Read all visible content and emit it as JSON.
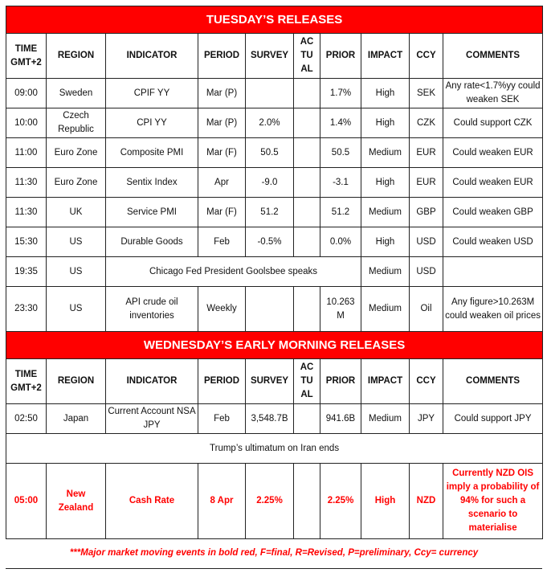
{
  "columns": [
    "TIME GMT+2",
    "REGION",
    "INDICATOR",
    "PERIOD",
    "SURVEY",
    "AC TU AL",
    "PRIOR",
    "IMPACT",
    "CCY",
    "COMMENTS"
  ],
  "colors": {
    "accent": "#ff0000"
  },
  "sections": [
    {
      "title": "TUESDAY’S RELEASES",
      "rows": [
        {
          "cells": [
            "09:00",
            "Sweden",
            "CPIF YY",
            "Mar (P)",
            "",
            "",
            "1.7%",
            "High",
            "SEK",
            "Any rate<1.7%yy could weaken SEK"
          ]
        },
        {
          "cells": [
            "10:00",
            "Czech Republic",
            "CPI YY",
            "Mar (P)",
            "2.0%",
            "",
            "1.4%",
            "High",
            "CZK",
            "Could support CZK"
          ]
        },
        {
          "cells": [
            "11:00",
            "Euro Zone",
            "Composite PMI",
            "Mar (F)",
            "50.5",
            "",
            "50.5",
            "Medium",
            "EUR",
            "Could weaken EUR"
          ]
        },
        {
          "cells": [
            "11:30",
            "Euro Zone",
            "Sentix Index",
            "Apr",
            "-9.0",
            "",
            "-3.1",
            "High",
            "EUR",
            "Could weaken EUR"
          ]
        },
        {
          "cells": [
            "11:30",
            "UK",
            "Service PMI",
            "Mar (F)",
            "51.2",
            "",
            "51.2",
            "Medium",
            "GBP",
            "Could weaken GBP"
          ]
        },
        {
          "cells": [
            "15:30",
            "US",
            "Durable Goods",
            "Feb",
            "-0.5%",
            "",
            "0.0%",
            "High",
            "USD",
            "Could weaken USD"
          ]
        },
        {
          "type": "event",
          "cells": [
            "19:35",
            "US",
            "Chicago Fed President Goolsbee speaks",
            "Medium",
            "USD",
            ""
          ]
        },
        {
          "type": "tall",
          "cells": [
            "23:30",
            "US",
            "API crude oil inventories",
            "Weekly",
            "",
            "",
            "10.263 M",
            "Medium",
            "Oil",
            "Any figure>10.263M could weaken oil prices"
          ]
        }
      ]
    },
    {
      "title": "WEDNESDAY’S EARLY MORNING RELEASES",
      "rows": [
        {
          "cells": [
            "02:50",
            "Japan",
            "Current Account NSA JPY",
            "Feb",
            "3,548.7B",
            "",
            "941.6B",
            "Medium",
            "JPY",
            "Could support JPY"
          ]
        },
        {
          "type": "note",
          "cells": [
            "Trump’s ultimatum on Iran ends"
          ]
        },
        {
          "type": "major",
          "cells": [
            "05:00",
            "New Zealand",
            "Cash Rate",
            "8 Apr",
            "2.25%",
            "",
            "2.25%",
            "High",
            "NZD",
            "Currently NZD OIS imply a probability of 94% for such a scenario to materialise"
          ]
        }
      ]
    }
  ],
  "footnote": "***Major market moving events in bold red, F=final, R=Revised, P=preliminary, Ccy= currency"
}
